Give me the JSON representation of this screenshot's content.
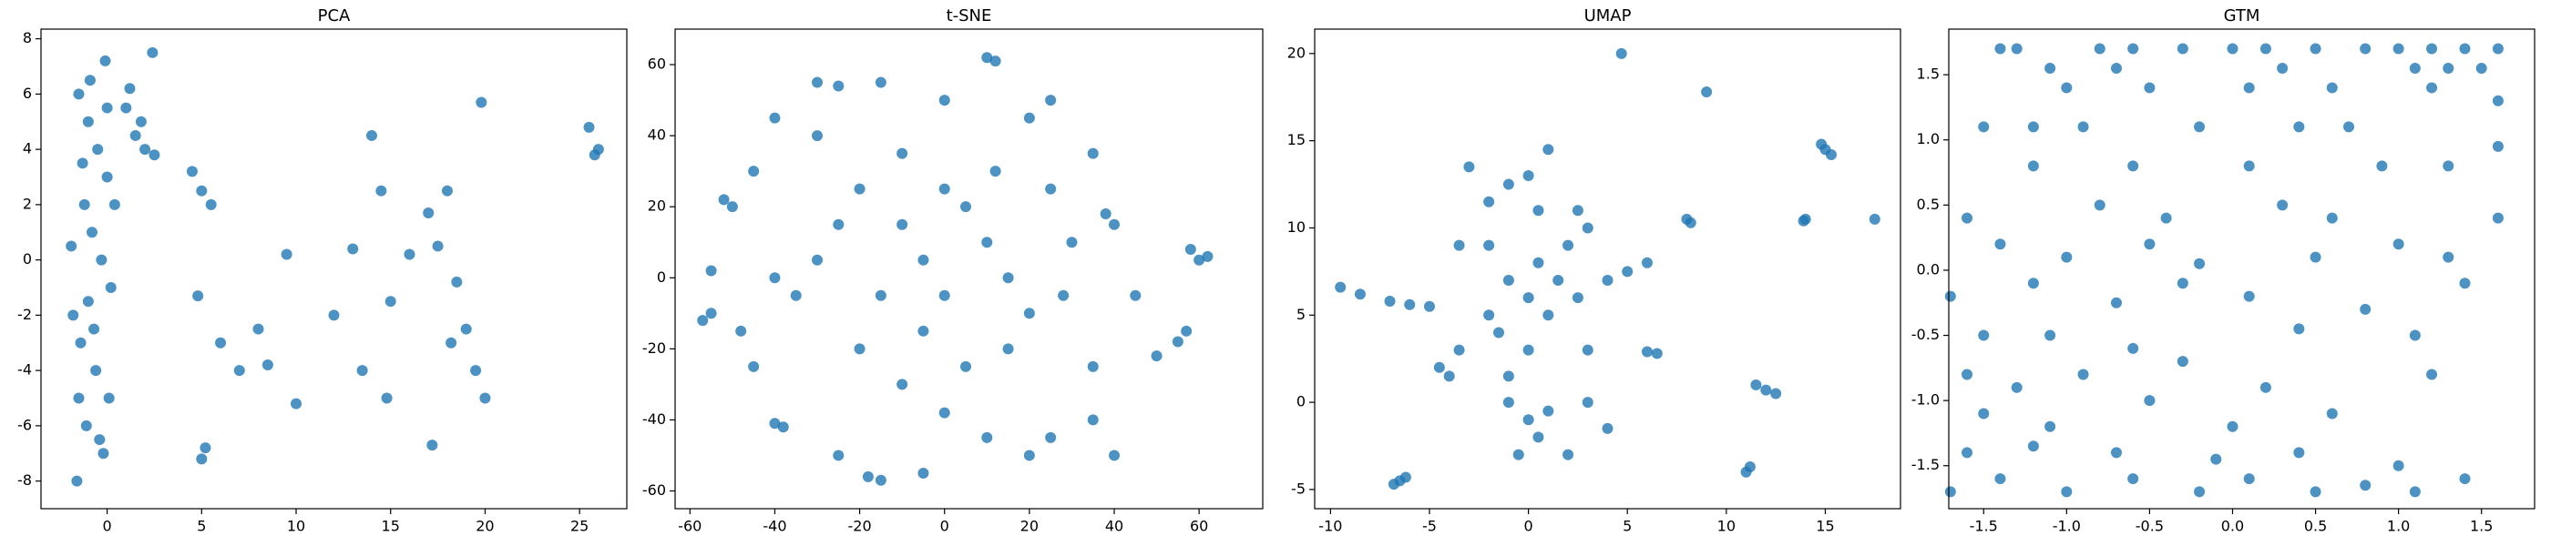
{
  "chart_data": [
    {
      "type": "scatter",
      "title": "PCA",
      "color": "#1f77b4",
      "x": [
        -1.5,
        -1,
        -0.5,
        0,
        -1.2,
        -0.8,
        -0.3,
        0.2,
        -1.8,
        -1.4,
        -0.6,
        0.1,
        -1.1,
        -0.2,
        -1.6,
        -0.9,
        -0.4,
        -0.1,
        -1.3,
        -0.7,
        -1.9,
        0.4,
        -1,
        0,
        -1.5,
        1,
        1.5,
        2,
        2.5,
        1.2,
        1.8,
        2.4,
        4.5,
        5,
        5.5,
        4.8,
        6,
        7,
        8,
        9.5,
        10,
        8.5,
        12,
        13,
        14,
        14.5,
        15,
        13.5,
        14.8,
        16,
        17,
        17.5,
        18,
        18.5,
        19,
        19.5,
        20,
        19.8,
        17.2,
        18.2,
        25.5,
        26,
        25.8,
        5.2,
        5
      ],
      "values": [
        6,
        5,
        4,
        3,
        2,
        1,
        0,
        -1,
        -2,
        -3,
        -4,
        -5,
        -6,
        -7,
        -8,
        6.5,
        -6.5,
        7.2,
        3.5,
        -2.5,
        0.5,
        2,
        -1.5,
        5.5,
        -5,
        5.5,
        4.5,
        4,
        3.8,
        6.2,
        5,
        7.5,
        3.2,
        2.5,
        2,
        -1.3,
        -3,
        -4,
        -2.5,
        0.2,
        -5.2,
        -3.8,
        -2,
        0.4,
        4.5,
        2.5,
        -1.5,
        -4,
        -5,
        0.2,
        1.7,
        0.5,
        2.5,
        -0.8,
        -2.5,
        -4,
        -5,
        5.7,
        -6.7,
        -3,
        4.8,
        4,
        3.8,
        -6.8,
        -7.2
      ],
      "xlim": [
        -3.5,
        27.5
      ],
      "ylim": [
        -9,
        8.35
      ],
      "xticks": [
        0,
        5,
        10,
        15,
        20,
        25
      ],
      "yticks": [
        -8,
        -6,
        -4,
        -2,
        0,
        2,
        4,
        6,
        8
      ]
    },
    {
      "type": "scatter",
      "title": "t-SNE",
      "color": "#1f77b4",
      "x": [
        -55,
        -57,
        -50,
        -52,
        -45,
        -40,
        -30,
        -25,
        -15,
        0,
        10,
        12,
        25,
        35,
        40,
        38,
        45,
        55,
        57,
        60,
        62,
        58,
        50,
        35,
        25,
        20,
        10,
        0,
        -5,
        -15,
        -18,
        -25,
        -38,
        -40,
        -45,
        -48,
        -35,
        -30,
        -25,
        -20,
        -10,
        0,
        5,
        10,
        15,
        20,
        15,
        5,
        -5,
        -15,
        -20,
        -10,
        25,
        30,
        28,
        -5,
        0,
        -30,
        35,
        -40,
        20,
        -10,
        12,
        40,
        -55
      ],
      "values": [
        -10,
        -12,
        20,
        22,
        30,
        45,
        55,
        54,
        55,
        50,
        62,
        61,
        50,
        35,
        15,
        18,
        -5,
        -18,
        -15,
        5,
        6,
        8,
        -22,
        -40,
        -45,
        -50,
        -45,
        -38,
        -55,
        -57,
        -56,
        -50,
        -42,
        -41,
        -25,
        -15,
        -5,
        5,
        15,
        25,
        35,
        25,
        20,
        10,
        0,
        -10,
        -20,
        -25,
        -15,
        -5,
        -20,
        -30,
        25,
        10,
        -5,
        5,
        -5,
        40,
        -25,
        0,
        45,
        15,
        30,
        -50,
        2
      ],
      "xlim": [
        -63.5,
        75
      ],
      "ylim": [
        -65,
        70
      ],
      "xticks": [
        -60,
        -40,
        -20,
        0,
        20,
        40,
        60
      ],
      "yticks": [
        -60,
        -40,
        -20,
        0,
        20,
        40,
        60
      ]
    },
    {
      "type": "scatter",
      "title": "UMAP",
      "color": "#1f77b4",
      "x": [
        -6.5,
        -6.8,
        -6.2,
        -9.5,
        -8.5,
        -7,
        -6,
        -5,
        -4.5,
        -3.5,
        -4,
        -3,
        -2,
        -1,
        0,
        0.5,
        1,
        -2,
        -1,
        -2,
        -1.5,
        0,
        0.5,
        1,
        1.5,
        2,
        2.5,
        3,
        2.5,
        0,
        -1,
        0,
        0.5,
        -0.5,
        1,
        2,
        3,
        3,
        4,
        5,
        6,
        4,
        6,
        6.5,
        4.7,
        9,
        15,
        15.3,
        14.8,
        8,
        8.2,
        14,
        13.9,
        17.5,
        12,
        11.5,
        12.5,
        11,
        11.2,
        -3.5,
        -1
      ],
      "values": [
        -4.5,
        -4.7,
        -4.3,
        6.6,
        6.2,
        5.8,
        5.6,
        5.5,
        2,
        3,
        1.5,
        13.5,
        11.5,
        12.5,
        13,
        11,
        14.5,
        9,
        7,
        5,
        4,
        6,
        8,
        5,
        7,
        9,
        6,
        10,
        11,
        3,
        0,
        -1,
        -2,
        -3,
        -0.5,
        -3,
        0,
        3,
        7,
        7.5,
        8,
        -1.5,
        2.9,
        2.8,
        20,
        17.8,
        14.5,
        14.2,
        14.8,
        10.5,
        10.3,
        10.5,
        10.4,
        10.5,
        0.7,
        1,
        0.5,
        -4,
        -3.7,
        9,
        1.5
      ],
      "xlim": [
        -10.8,
        18.8
      ],
      "ylim": [
        -6.1,
        21.4
      ],
      "xticks": [
        -10,
        -5,
        0,
        5,
        10,
        15
      ],
      "yticks": [
        -5,
        0,
        5,
        10,
        15,
        20
      ]
    },
    {
      "type": "scatter",
      "title": "GTM",
      "color": "#1f77b4",
      "x": [
        -1.4,
        -1.3,
        -0.8,
        -0.6,
        -0.3,
        0,
        0.2,
        0.5,
        0.8,
        1.0,
        1.2,
        1.4,
        1.6,
        -1.1,
        -0.7,
        0.3,
        1.1,
        1.3,
        1.5,
        -1.0,
        -0.5,
        0.1,
        0.6,
        1.2,
        1.6,
        -1.5,
        -1.2,
        -0.9,
        -0.2,
        0.4,
        0.7,
        1.6,
        -1.2,
        -0.6,
        0.1,
        0.9,
        1.3,
        -1.6,
        -0.8,
        -0.4,
        0.3,
        0.6,
        1.6,
        -1.4,
        -1.0,
        -0.5,
        -0.2,
        0.5,
        1.0,
        1.3,
        -1.7,
        -1.2,
        -0.7,
        -0.3,
        0.1,
        0.8,
        1.4,
        -1.5,
        -1.1,
        -0.6,
        0.4,
        1.1,
        -1.6,
        -1.3,
        -0.9,
        -0.3,
        0.2,
        1.2,
        -1.5,
        -1.1,
        -0.5,
        0.0,
        0.6,
        -1.6,
        -1.2,
        -0.7,
        -0.1,
        0.4,
        1.0,
        -1.7,
        -1.4,
        -1.0,
        -0.6,
        -0.2,
        0.1,
        0.5,
        0.8,
        1.1,
        1.4
      ],
      "values": [
        1.7,
        1.7,
        1.7,
        1.7,
        1.7,
        1.7,
        1.7,
        1.7,
        1.7,
        1.7,
        1.7,
        1.7,
        1.7,
        1.55,
        1.55,
        1.55,
        1.55,
        1.55,
        1.55,
        1.4,
        1.4,
        1.4,
        1.4,
        1.4,
        1.3,
        1.1,
        1.1,
        1.1,
        1.1,
        1.1,
        1.1,
        0.95,
        0.8,
        0.8,
        0.8,
        0.8,
        0.8,
        0.4,
        0.5,
        0.4,
        0.5,
        0.4,
        0.4,
        0.2,
        0.1,
        0.2,
        0.05,
        0.1,
        0.2,
        0.1,
        -0.2,
        -0.1,
        -0.25,
        -0.1,
        -0.2,
        -0.3,
        -0.1,
        -0.5,
        -0.5,
        -0.6,
        -0.45,
        -0.5,
        -0.8,
        -0.9,
        -0.8,
        -0.7,
        -0.9,
        -0.8,
        -1.1,
        -1.2,
        -1.0,
        -1.2,
        -1.1,
        -1.4,
        -1.35,
        -1.4,
        -1.45,
        -1.4,
        -1.5,
        -1.7,
        -1.6,
        -1.7,
        -1.6,
        -1.7,
        -1.6,
        -1.7,
        -1.65,
        -1.7,
        -1.6
      ],
      "xlim": [
        -1.71,
        1.82
      ],
      "ylim": [
        -1.83,
        1.85
      ],
      "xticks": [
        -1.5,
        {
          "value": -1,
          "label": "-1.0"
        },
        -0.5,
        {
          "value": 0,
          "label": "0.0"
        },
        0.5,
        {
          "value": 1,
          "label": "1.0"
        },
        1.5
      ],
      "yticks": [
        -1.5,
        {
          "value": -1,
          "label": "-1.0"
        },
        -0.5,
        {
          "value": 0,
          "label": "0.0"
        },
        0.5,
        {
          "value": 1,
          "label": "1.0"
        },
        1.5
      ]
    }
  ]
}
